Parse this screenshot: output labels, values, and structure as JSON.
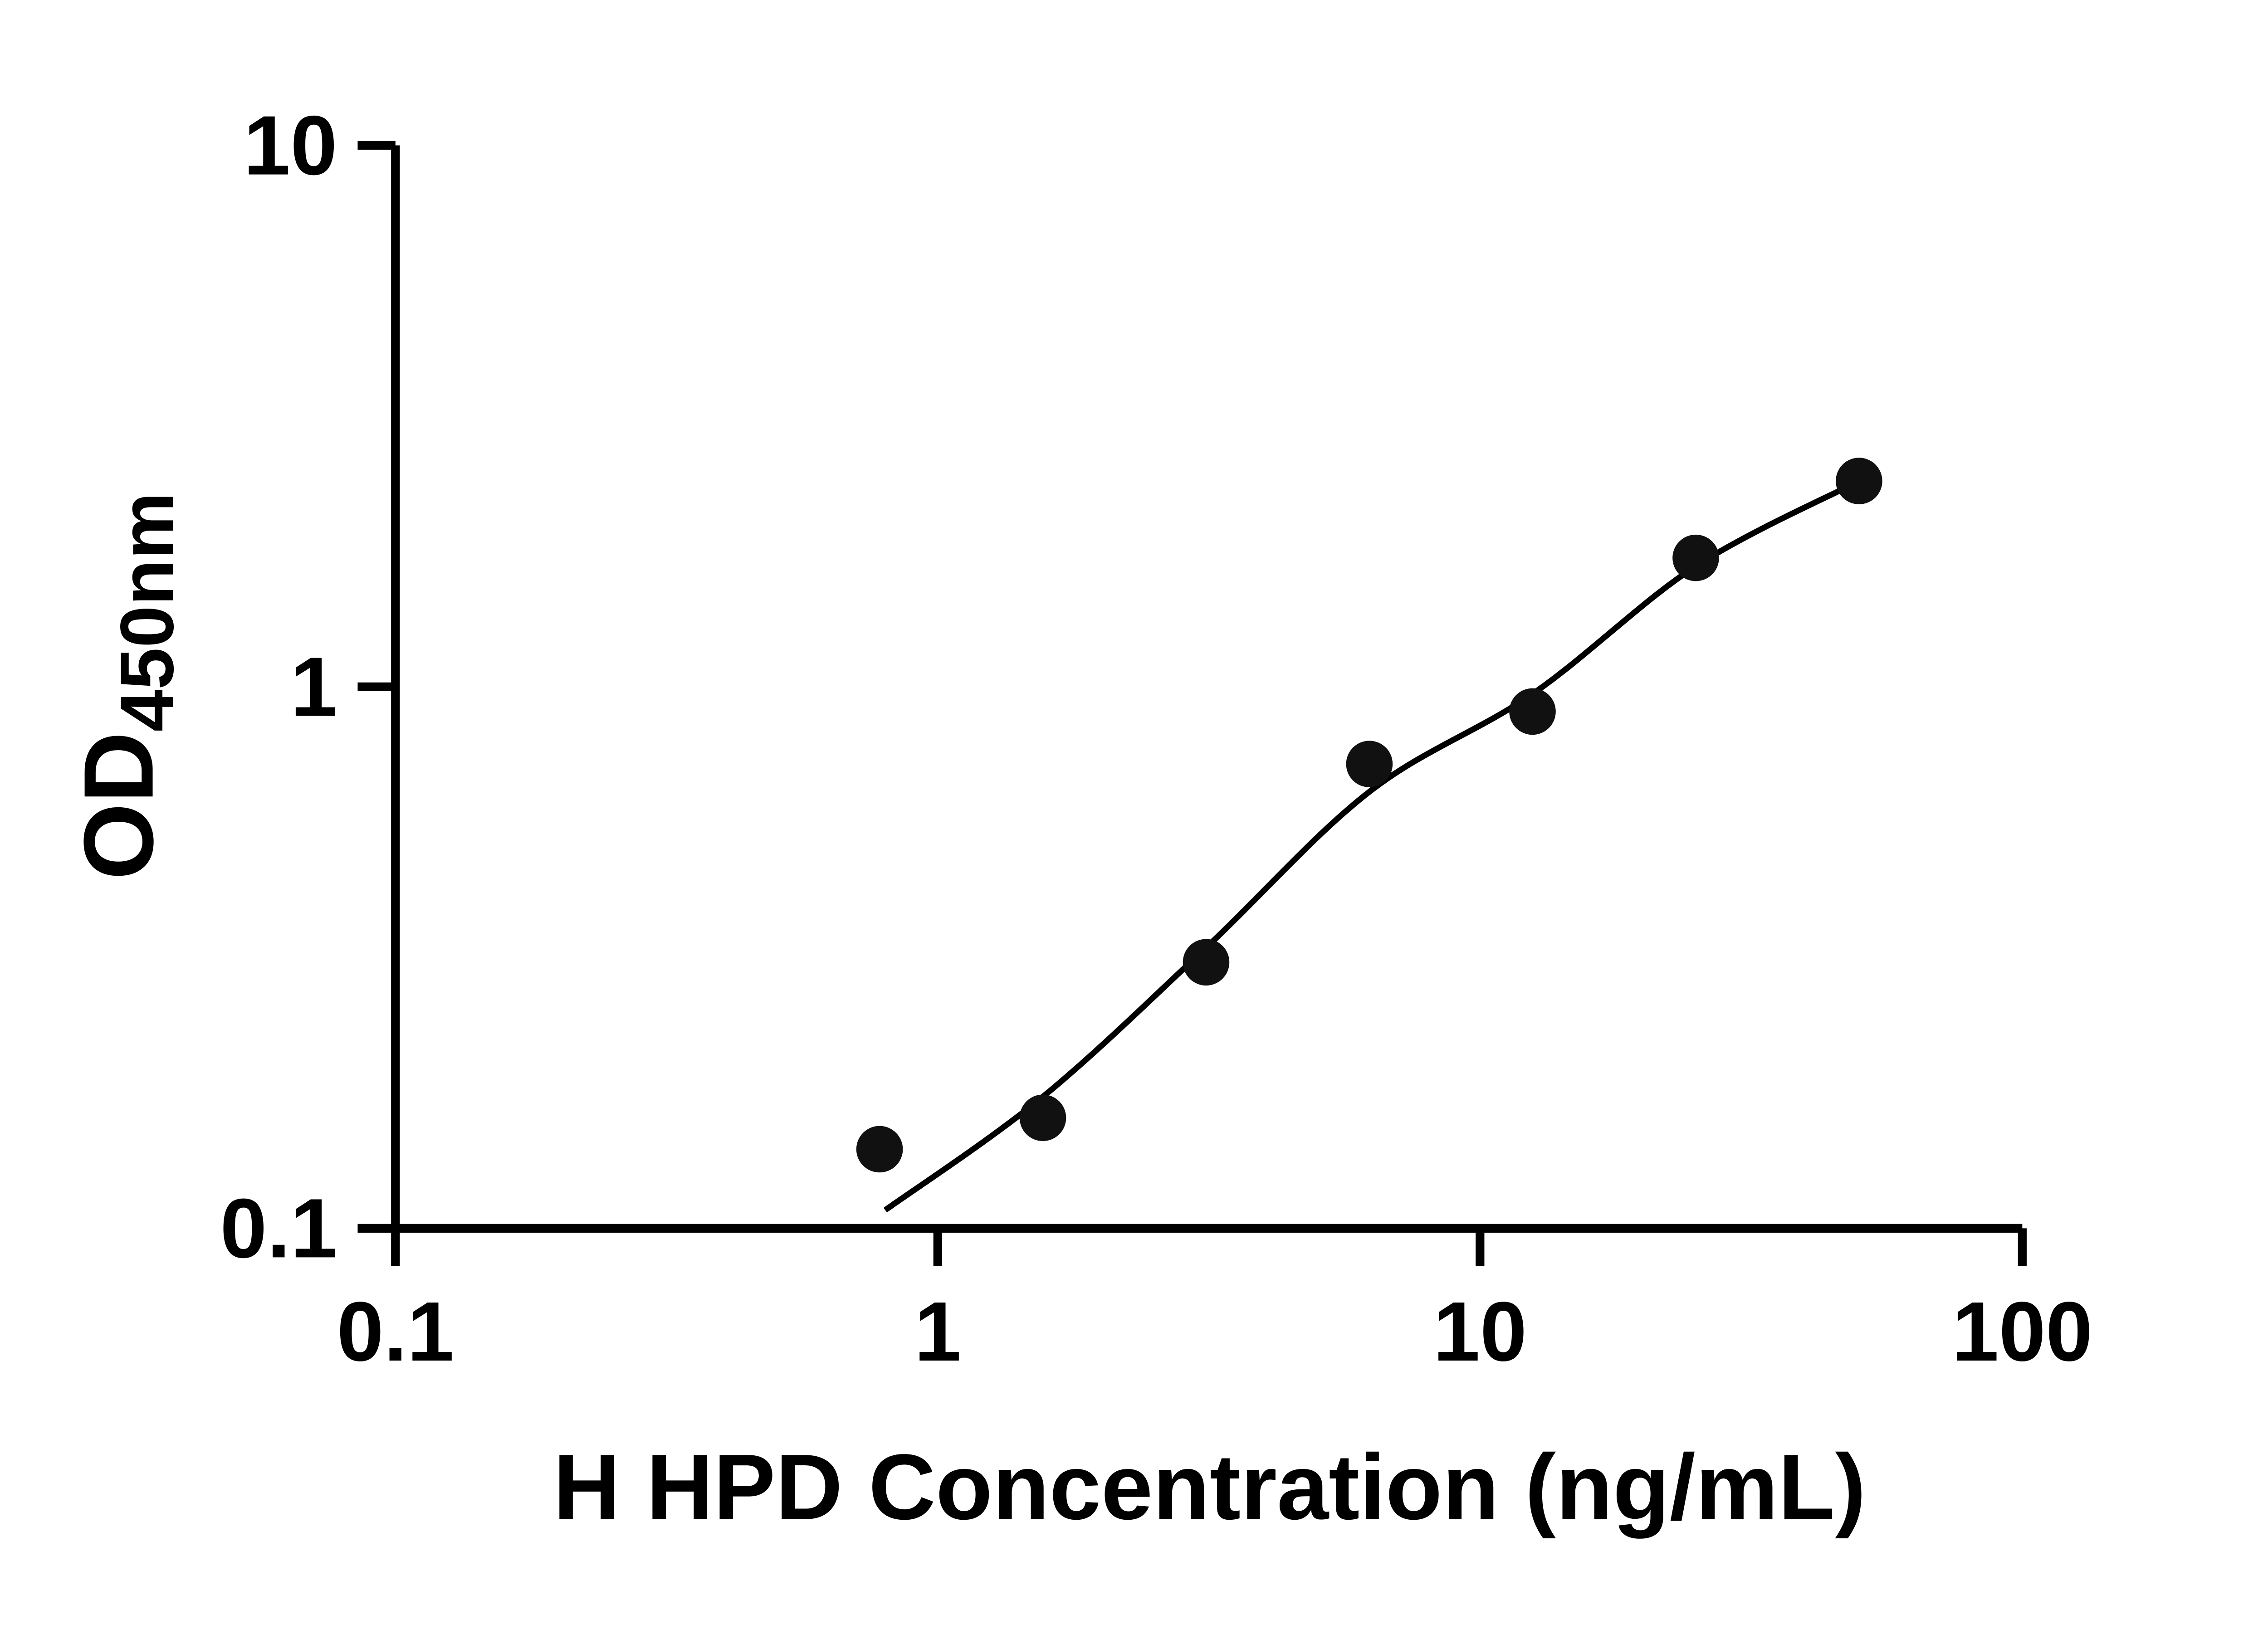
{
  "style": {
    "background": "#ffffff",
    "axis_color": "#000000",
    "point_color": "#111111",
    "curve_color": "#000000"
  },
  "chart_data": {
    "type": "scatter",
    "title": "",
    "xlabel": "H HPD Concentration (ng/mL)",
    "ylabel": "OD",
    "ylabel_sub": "450nm",
    "x_scale": "log10",
    "y_scale": "log10",
    "xlim": [
      0.1,
      100
    ],
    "ylim": [
      0.1,
      10
    ],
    "grid": false,
    "legend": "none",
    "x_ticks": [
      {
        "value": 0.1,
        "label": "0.1"
      },
      {
        "value": 1,
        "label": "1"
      },
      {
        "value": 10,
        "label": "10"
      },
      {
        "value": 100,
        "label": "100"
      }
    ],
    "y_ticks": [
      {
        "value": 0.1,
        "label": "0.1"
      },
      {
        "value": 1,
        "label": "1"
      },
      {
        "value": 10,
        "label": "10"
      }
    ],
    "series": [
      {
        "name": "standard-points",
        "type": "scatter",
        "marker": "circle",
        "color": "#111111",
        "points": [
          {
            "x": 0.781,
            "y": 0.14
          },
          {
            "x": 1.563,
            "y": 0.16
          },
          {
            "x": 3.125,
            "y": 0.31
          },
          {
            "x": 6.25,
            "y": 0.72
          },
          {
            "x": 12.5,
            "y": 0.9
          },
          {
            "x": 25,
            "y": 1.73
          },
          {
            "x": 50,
            "y": 2.4
          }
        ]
      },
      {
        "name": "fit-curve",
        "type": "smooth-line",
        "color": "#000000",
        "points": [
          {
            "x": 0.8,
            "y": 0.108
          },
          {
            "x": 1.563,
            "y": 0.175
          },
          {
            "x": 3.125,
            "y": 0.33
          },
          {
            "x": 6.25,
            "y": 0.64
          },
          {
            "x": 12.5,
            "y": 0.97
          },
          {
            "x": 25,
            "y": 1.67
          },
          {
            "x": 51,
            "y": 2.42
          }
        ]
      }
    ]
  }
}
